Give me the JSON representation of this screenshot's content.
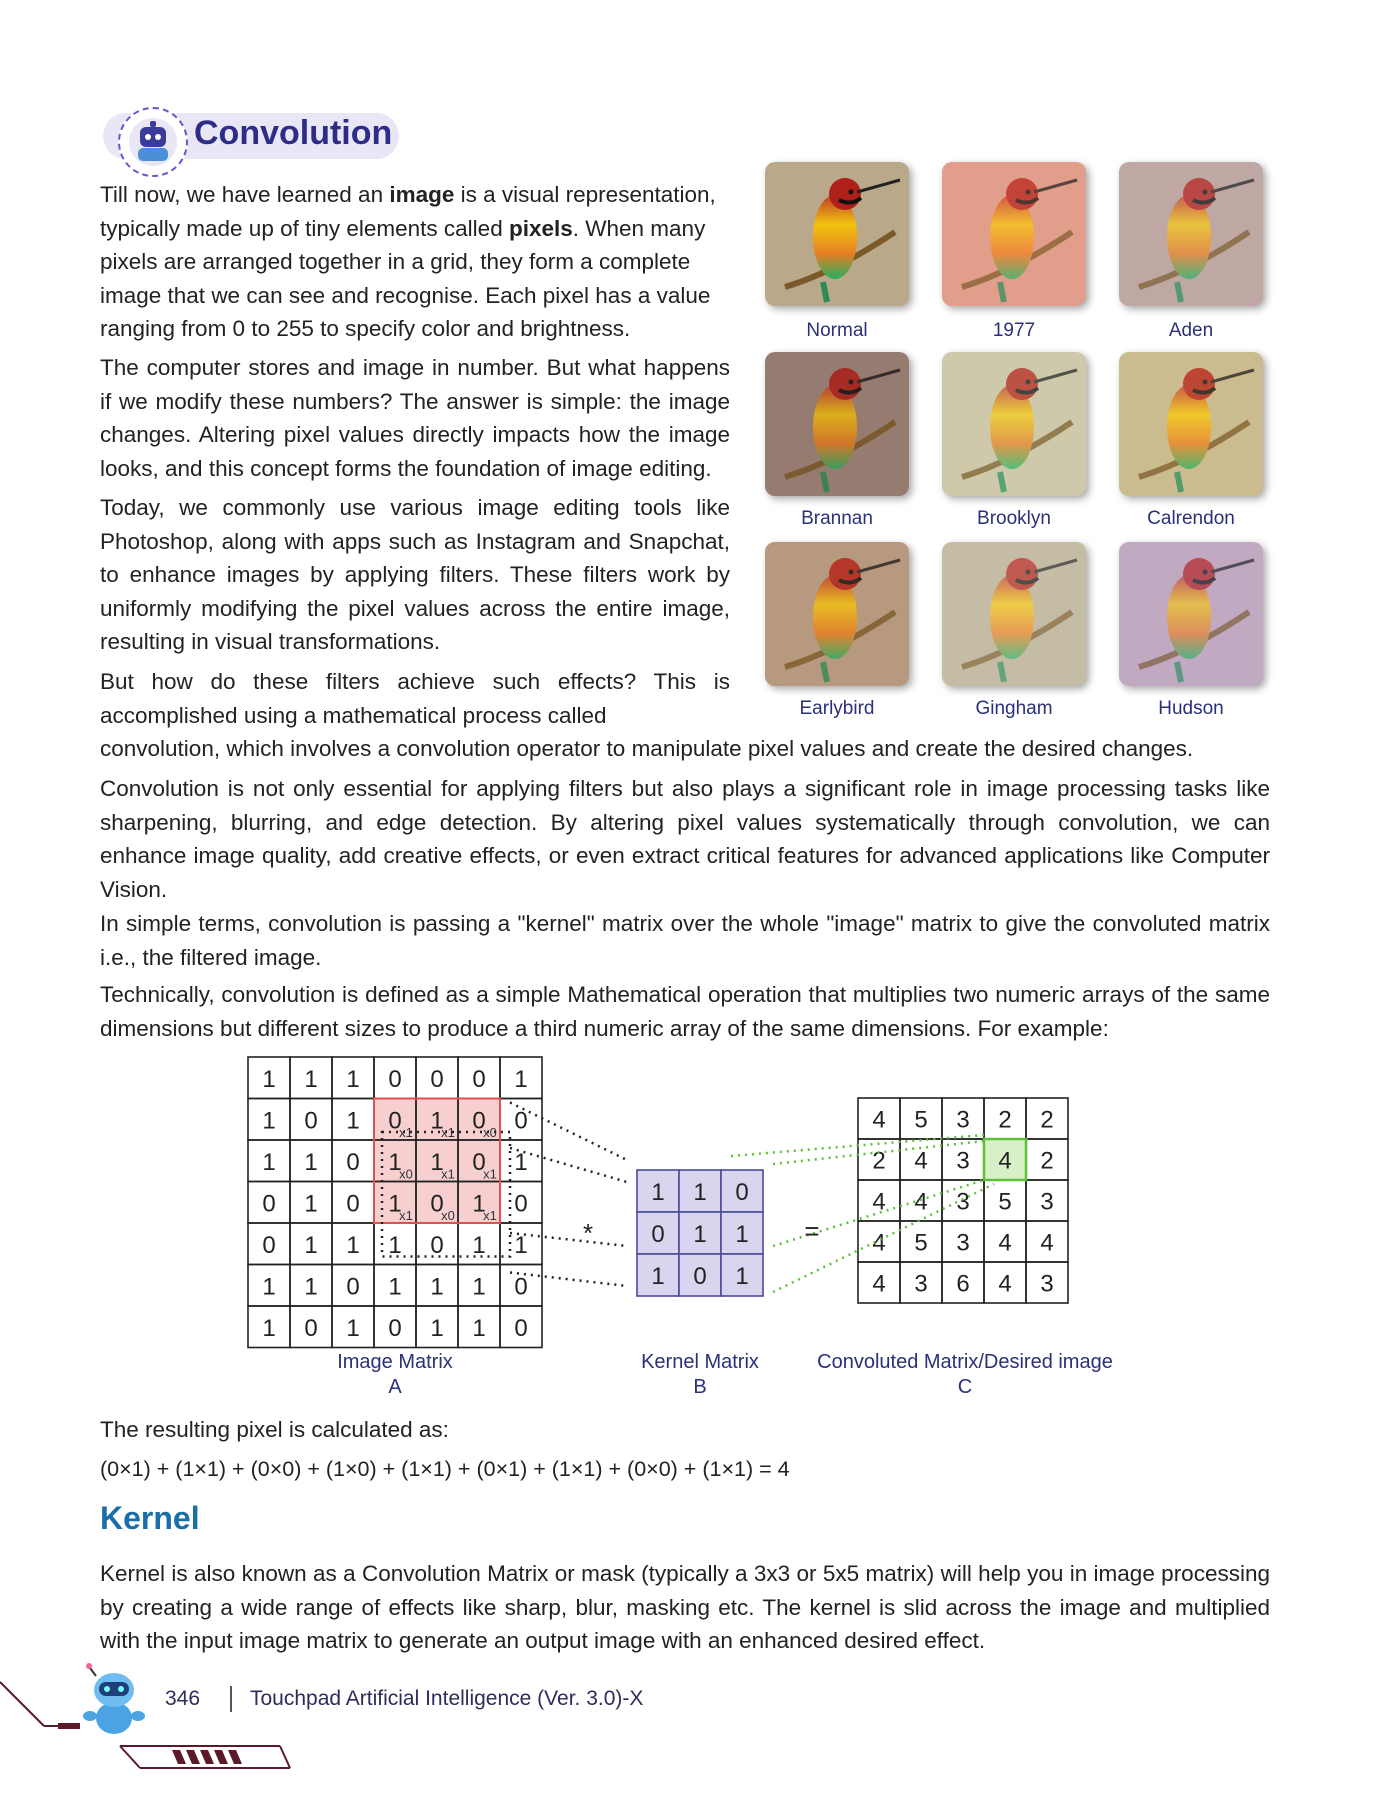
{
  "header": {
    "title": "Convolution"
  },
  "paragraphs": {
    "p1_lines": [
      [
        "Till now, we have learned an ",
        "image",
        " is a visual representation,"
      ],
      [
        "typically made up of tiny elements called ",
        "pixels",
        ". When many"
      ],
      [
        "pixels are arranged together in a grid, they form a complete"
      ],
      [
        "image that we can see and recognise. Each pixel has a value"
      ],
      [
        "ranging from 0 to 255 to specify  color and brightness."
      ]
    ],
    "p2": "The computer stores and image in number. But what happens if we modify these numbers? The answer is simple: the image changes. Altering pixel values directly impacts how the image looks, and this concept forms the foundation of image editing.",
    "p3": "Today, we commonly use various image editing tools like Photoshop, along with apps such as Instagram and Snapchat, to enhance images by applying filters. These filters work by uniformly modifying the pixel values across the entire image, resulting in visual transformations.",
    "p4_narrow": "But how do these filters achieve such effects? This is accomplished using a mathematical process called",
    "p4_wide": "convolution, which involves a convolution operator to manipulate pixel values and create the desired changes.",
    "p5": "Convolution is not only essential for applying filters but also plays a significant role in image processing tasks like sharpening, blurring, and edge detection. By altering pixel values systematically through convolution, we can enhance image quality, add creative effects, or even extract critical features for advanced applications like Computer Vision.",
    "p6": "In simple terms, convolution is passing a \"kernel\" matrix over the whole \"image\" matrix to give the convoluted matrix i.e., the filtered image.",
    "p7": "Technically, convolution is defined as a simple Mathematical operation that multiplies two numeric arrays of the same dimensions but different sizes to produce a third numeric array of the same dimensions. For example:",
    "result_label": "The resulting pixel is calculated as:",
    "formula": "(0×1) + (1×1) + (0×0) + (1×0) + (1×1) + (0×1) + (1×1) + (0×0) + (1×1) = 4",
    "kernel_text": "Kernel is also known as a Convolution Matrix or mask (typically a 3x3 or 5x5 matrix) will help you in image processing by creating a wide range of effects like sharp, blur, masking etc. The kernel is slid across the image and multiplied with the input image matrix to generate an output image with an enhanced desired effect."
  },
  "filters": [
    {
      "name": "Normal",
      "bg": "#b9a88a",
      "tint": "rgba(255,255,255,0)"
    },
    {
      "name": "1977",
      "bg": "#d79a86",
      "tint": "rgba(255,170,150,0.25)"
    },
    {
      "name": "Aden",
      "bg": "#b8a198",
      "tint": "rgba(210,190,200,0.25)"
    },
    {
      "name": "Brannan",
      "bg": "#9b8478",
      "tint": "rgba(130,90,80,0.2)"
    },
    {
      "name": "Brooklyn",
      "bg": "#c8bfa0",
      "tint": "rgba(220,230,200,0.25)"
    },
    {
      "name": "Calrendon",
      "bg": "#c2b48c",
      "tint": "rgba(240,220,160,0.2)"
    },
    {
      "name": "Earlybird",
      "bg": "#b29a84",
      "tint": "rgba(200,150,110,0.2)"
    },
    {
      "name": "Gingham",
      "bg": "#b8ad92",
      "tint": "rgba(230,225,210,0.3)"
    },
    {
      "name": "Hudson",
      "bg": "#bfa6b2",
      "tint": "rgba(200,180,230,0.3)"
    }
  ],
  "diagram": {
    "image_matrix": [
      [
        "1",
        "1",
        "1",
        "0",
        "0",
        "0",
        "1"
      ],
      [
        "1",
        "0",
        "1",
        "0",
        "1",
        "0",
        "0"
      ],
      [
        "1",
        "1",
        "0",
        "1",
        "1",
        "0",
        "1"
      ],
      [
        "0",
        "1",
        "0",
        "1",
        "0",
        "1",
        "0"
      ],
      [
        "0",
        "1",
        "1",
        "1",
        "0",
        "1",
        "1"
      ],
      [
        "1",
        "1",
        "0",
        "1",
        "1",
        "1",
        "0"
      ],
      [
        "1",
        "0",
        "1",
        "0",
        "1",
        "1",
        "0"
      ]
    ],
    "multipliers": [
      [
        "x1",
        "x1",
        "x0"
      ],
      [
        "x0",
        "x1",
        "x1"
      ],
      [
        "x1",
        "x0",
        "x1"
      ]
    ],
    "kernel_matrix": [
      [
        "1",
        "1",
        "0"
      ],
      [
        "0",
        "1",
        "1"
      ],
      [
        "1",
        "0",
        "1"
      ]
    ],
    "convoluted_matrix": [
      [
        "4",
        "5",
        "3",
        "2",
        "2"
      ],
      [
        "2",
        "4",
        "3",
        "4",
        "2"
      ],
      [
        "4",
        "4",
        "3",
        "5",
        "3"
      ],
      [
        "4",
        "5",
        "3",
        "4",
        "4"
      ],
      [
        "4",
        "3",
        "6",
        "4",
        "3"
      ]
    ],
    "operator_multiply": "*",
    "operator_equals": "=",
    "label_a": "Image Matrix",
    "label_a_letter": "A",
    "label_b": "Kernel Matrix",
    "label_b_letter": "B",
    "label_c": "Convoluted Matrix/Desired image",
    "label_c_letter": "C",
    "colors": {
      "highlight_red": "#e05050",
      "highlight_red_fill": "#f7cfcf",
      "kernel_fill": "#d9d5ee",
      "kernel_border": "#4a4a9a",
      "green": "#5cc03a",
      "green_fill": "#d8f0c8"
    }
  },
  "section": {
    "kernel_heading": "Kernel"
  },
  "footer": {
    "page_number": "346",
    "book_title": "Touchpad Artificial Intelligence (Ver. 3.0)-X"
  }
}
